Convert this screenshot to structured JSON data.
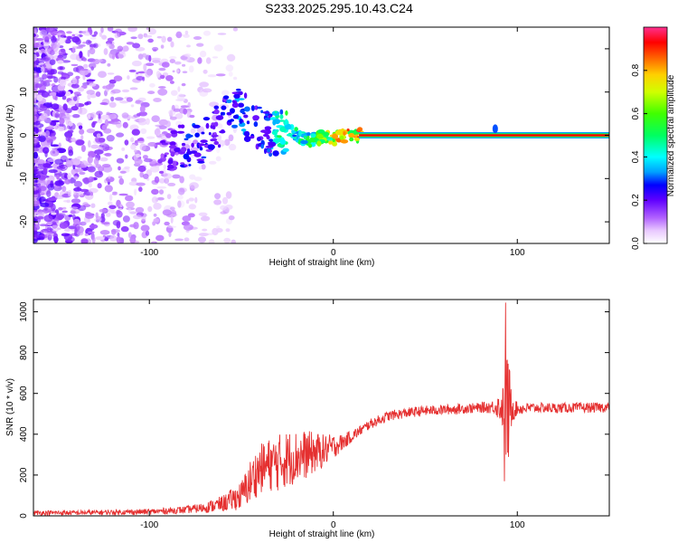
{
  "title": "S233.2025.295.10.43.C24",
  "colorbar": {
    "label": "Normalized spectral amplitude",
    "ticks": [
      "0.0",
      "0.2",
      "0.4",
      "0.6",
      "0.8"
    ],
    "range": [
      0.0,
      1.0
    ]
  },
  "chart_data": [
    {
      "type": "heatmap",
      "title": "",
      "xlabel": "Height of straight line (km)",
      "ylabel": "Frequency (Hz)",
      "xlim": [
        -163,
        150
      ],
      "ylim": [
        -25,
        25
      ],
      "xticks": [
        -100,
        0,
        100
      ],
      "xtick_labels": [
        "-100",
        "0",
        "100"
      ],
      "yticks": [
        -20,
        -10,
        0,
        10,
        20
      ],
      "ytick_labels": [
        "-20",
        "-10",
        "0",
        "10",
        "20"
      ],
      "description_series": {
        "ridge_x": [
          -95,
          -85,
          -80,
          -72,
          -65,
          -58,
          -50,
          -45,
          -40,
          -35,
          -30,
          -25,
          -20,
          -15,
          -10,
          -5,
          0,
          5,
          10,
          15,
          40,
          75,
          88,
          100,
          150
        ],
        "ridge_freq": [
          -4,
          -3,
          -2,
          -2,
          1,
          4,
          6,
          3,
          2,
          0,
          1,
          1,
          0,
          -1,
          -1,
          0,
          -1,
          0,
          0,
          0,
          0,
          0,
          0,
          0,
          0
        ],
        "ridge_amplitude": [
          0.2,
          0.2,
          0.3,
          0.3,
          0.25,
          0.3,
          0.35,
          0.3,
          0.3,
          0.3,
          0.5,
          0.55,
          0.5,
          0.55,
          0.6,
          0.7,
          0.8,
          0.85,
          0.9,
          0.95,
          0.98,
          0.98,
          0.7,
          0.98,
          0.98
        ]
      }
    },
    {
      "type": "line",
      "title": "",
      "xlabel": "Height of straight line (km)",
      "ylabel": "SNR (10 * v/v)",
      "xlim": [
        -163,
        150
      ],
      "ylim": [
        0,
        1060
      ],
      "xticks": [
        -100,
        0,
        100
      ],
      "xtick_labels": [
        "-100",
        "0",
        "100"
      ],
      "yticks": [
        0,
        200,
        400,
        600,
        800,
        1000
      ],
      "ytick_labels": [
        "0",
        "200",
        "400",
        "600",
        "800",
        "1000"
      ],
      "series": [
        {
          "name": "SNR",
          "color": "#e53030",
          "envelope_x": [
            -163,
            -140,
            -120,
            -100,
            -90,
            -80,
            -70,
            -60,
            -50,
            -45,
            -40,
            -35,
            -30,
            -25,
            -20,
            -15,
            -10,
            -5,
            0,
            5,
            10,
            15,
            20,
            25,
            30,
            40,
            50,
            60,
            70,
            80,
            88,
            93,
            95,
            97,
            100,
            110,
            120,
            130,
            140,
            150
          ],
          "envelope_mean": [
            15,
            15,
            18,
            20,
            25,
            30,
            40,
            60,
            100,
            170,
            230,
            250,
            260,
            280,
            290,
            300,
            310,
            320,
            340,
            360,
            390,
            420,
            450,
            470,
            490,
            505,
            515,
            520,
            525,
            530,
            535,
            530,
            520,
            530,
            525,
            530,
            528,
            530,
            530,
            532
          ],
          "envelope_amplitude": [
            12,
            12,
            12,
            14,
            16,
            18,
            25,
            40,
            70,
            110,
            120,
            130,
            140,
            140,
            130,
            120,
            100,
            80,
            60,
            40,
            30,
            25,
            25,
            25,
            25,
            25,
            25,
            25,
            25,
            25,
            35,
            120,
            300,
            80,
            30,
            25,
            25,
            25,
            25,
            25
          ],
          "peak": {
            "x": 93.5,
            "y": 1045
          },
          "trough": {
            "x": 93,
            "y": 170
          }
        }
      ]
    }
  ]
}
